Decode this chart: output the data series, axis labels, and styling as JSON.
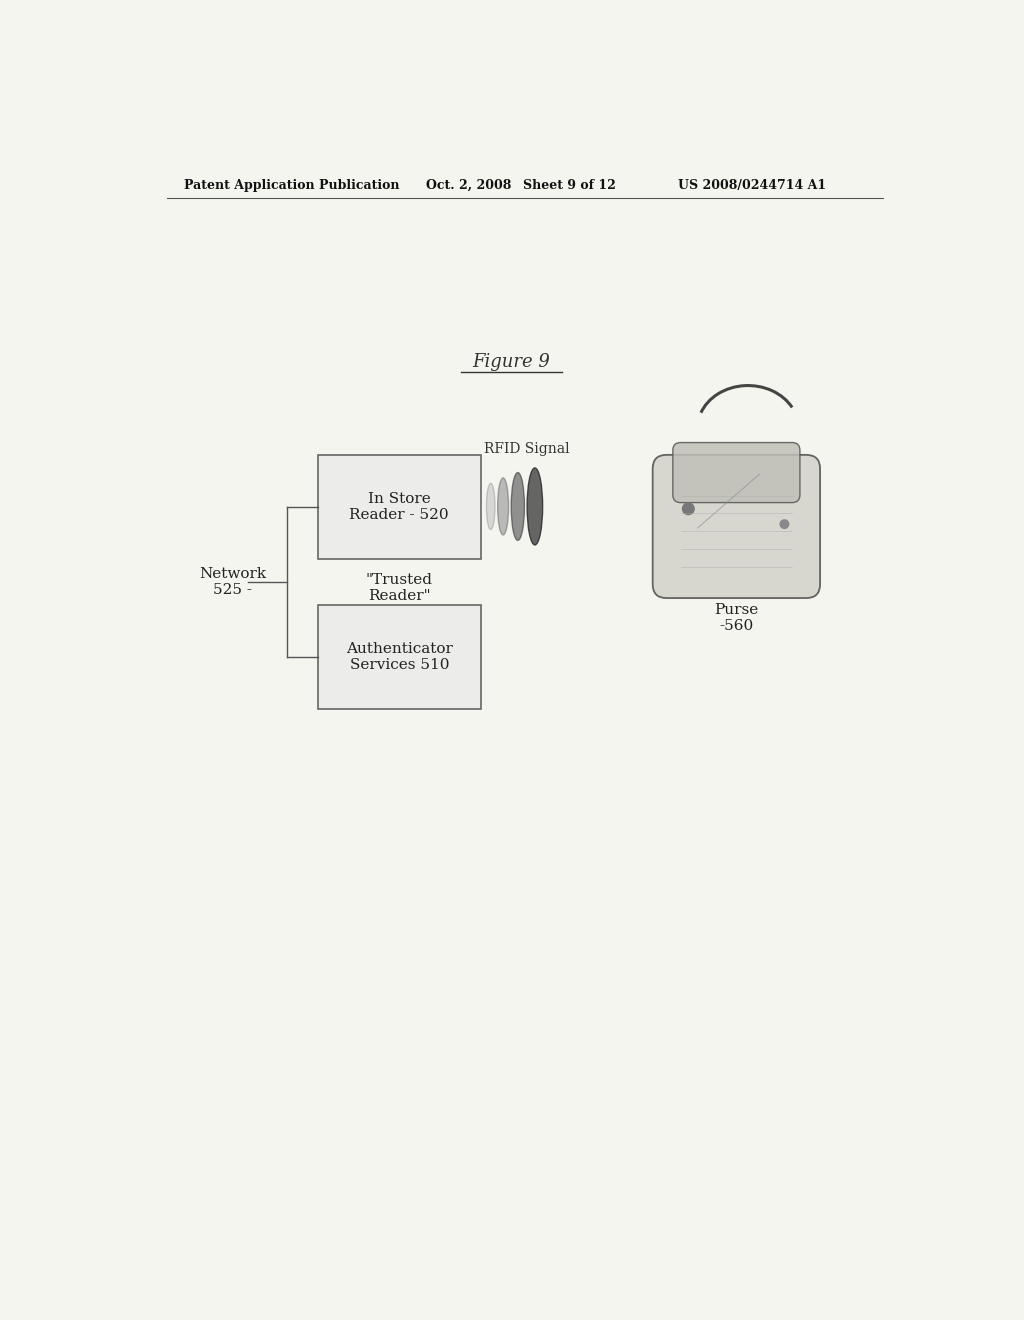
{
  "bg_color": "#f5f5f0",
  "header_text": "Patent Application Publication",
  "header_date": "Oct. 2, 2008",
  "header_sheet": "Sheet 9 of 12",
  "header_patent": "US 2008/0244714 A1",
  "figure_title": "Figure 9",
  "box1_text": "In Store\nReader - 520",
  "box1_label": "\"Trusted\nReader\"",
  "box2_text": "Authenticator\nServices 510",
  "network_label": "Network\n525 -",
  "rfid_label": "RFID Signal",
  "purse_label": "Purse\n-560"
}
